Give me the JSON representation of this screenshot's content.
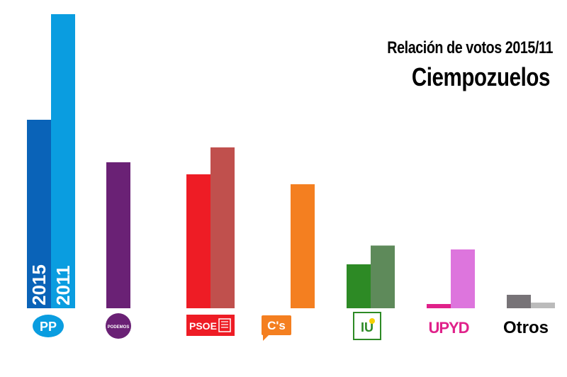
{
  "title": "Relación de votos 2015/11",
  "subtitle": "Ciempozuelos",
  "chart_data": {
    "type": "bar",
    "categories": [
      "PP",
      "PODEMOS",
      "PSOE",
      "C's",
      "IU",
      "UPYD",
      "Otros"
    ],
    "series": [
      {
        "name": "2015",
        "values": [
          2660,
          2060,
          1890,
          null,
          620,
          60,
          190
        ]
      },
      {
        "name": "2011",
        "values": [
          4150,
          null,
          2270,
          1750,
          885,
          830,
          80
        ]
      }
    ],
    "ylim": [
      0,
      4150
    ],
    "grid": false,
    "legend": "inside first bars (rotated)",
    "colors": {
      "PP": [
        "#0a63b8",
        "#0a9de0"
      ],
      "PODEMOS": [
        "#6a2175",
        null
      ],
      "PSOE": [
        "#ee1c25",
        "#c0504d"
      ],
      "C's": [
        null,
        "#f47f20"
      ],
      "IU": [
        "#2d8a25",
        "#5e8a5a"
      ],
      "UPYD": [
        "#e0218a",
        "#dd75dd"
      ],
      "Otros": [
        "#777377",
        "#bbbbbb"
      ]
    },
    "category_labels": [
      "PSOE",
      "C's",
      "Otros"
    ],
    "logos": [
      "pp-logo",
      "podemos-logo",
      "psoe-logo",
      "cs-logo",
      "iu-logo",
      "upyd-logo"
    ]
  }
}
